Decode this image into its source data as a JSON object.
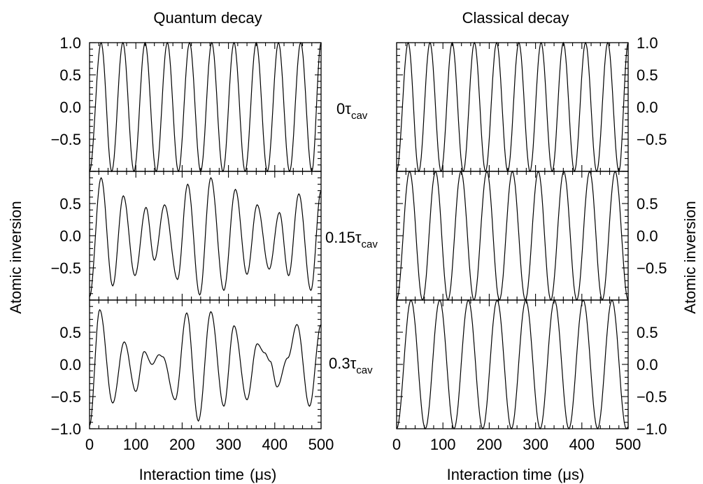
{
  "chart_data": [
    {
      "type": "line",
      "title": "Quantum decay",
      "xlabel": "Interaction time",
      "xunit": "(μs)",
      "ylabel": "Atomic inversion",
      "xlim": [
        0,
        500
      ],
      "xticks": [
        "0",
        "100",
        "200",
        "300",
        "400",
        "500"
      ],
      "rows": [
        {
          "label_main": "0τ",
          "label_sub": "cav",
          "ylim": [
            -1.0,
            1.0
          ],
          "yticks": [
            "1.0",
            "0.5",
            "0.0",
            "−0.5"
          ],
          "peaks": [
            [
              0,
              -1.0
            ],
            [
              25,
              1.0
            ],
            [
              48,
              -1.0
            ],
            [
              72,
              1.0
            ],
            [
              96,
              -1.0
            ],
            [
              120,
              1.0
            ],
            [
              144,
              -1.0
            ],
            [
              168,
              1.0
            ],
            [
              192,
              -1.0
            ],
            [
              216,
              1.0
            ],
            [
              240,
              -1.0
            ],
            [
              264,
              1.0
            ],
            [
              288,
              -1.0
            ],
            [
              312,
              1.0
            ],
            [
              336,
              -1.0
            ],
            [
              360,
              1.0
            ],
            [
              384,
              -1.0
            ],
            [
              408,
              1.0
            ],
            [
              432,
              -1.0
            ],
            [
              456,
              1.0
            ],
            [
              480,
              -1.0
            ],
            [
              500,
              1.0
            ]
          ]
        },
        {
          "label_main": "0.15τ",
          "label_sub": "cav",
          "ylim": [
            -1.0,
            1.0
          ],
          "yticks": [
            "0.5",
            "0.0",
            "−0.5"
          ],
          "peaks": [
            [
              0,
              -0.95
            ],
            [
              25,
              0.9
            ],
            [
              50,
              -0.78
            ],
            [
              73,
              0.62
            ],
            [
              98,
              -0.62
            ],
            [
              122,
              0.44
            ],
            [
              140,
              -0.38
            ],
            [
              162,
              0.48
            ],
            [
              190,
              -0.68
            ],
            [
              212,
              0.8
            ],
            [
              238,
              -0.92
            ],
            [
              262,
              0.9
            ],
            [
              290,
              -0.85
            ],
            [
              315,
              0.72
            ],
            [
              340,
              -0.6
            ],
            [
              362,
              0.48
            ],
            [
              388,
              -0.52
            ],
            [
              410,
              0.36
            ],
            [
              430,
              -0.62
            ],
            [
              452,
              0.65
            ],
            [
              478,
              -0.85
            ],
            [
              500,
              0.7
            ]
          ]
        },
        {
          "label_main": "0.3τ",
          "label_sub": "cav",
          "ylim": [
            -1.0,
            1.0
          ],
          "yticks": [
            "0.5",
            "0.0",
            "−0.5",
            "−1.0"
          ],
          "peaks": [
            [
              0,
              -0.95
            ],
            [
              22,
              0.85
            ],
            [
              50,
              -0.6
            ],
            [
              75,
              0.35
            ],
            [
              100,
              -0.42
            ],
            [
              118,
              0.2
            ],
            [
              135,
              0.0
            ],
            [
              150,
              0.15
            ],
            [
              158,
              0.12
            ],
            [
              185,
              -0.55
            ],
            [
              210,
              0.8
            ],
            [
              235,
              -0.88
            ],
            [
              262,
              0.82
            ],
            [
              290,
              -0.65
            ],
            [
              312,
              0.6
            ],
            [
              340,
              -0.55
            ],
            [
              362,
              0.32
            ],
            [
              378,
              0.18
            ],
            [
              390,
              0.05
            ],
            [
              405,
              -0.35
            ],
            [
              428,
              0.1
            ],
            [
              448,
              0.62
            ],
            [
              475,
              -0.65
            ],
            [
              500,
              0.62
            ]
          ]
        }
      ]
    },
    {
      "type": "line",
      "title": "Classical decay",
      "xlabel": "Interaction time",
      "xunit": "(μs)",
      "ylabel": "Atomic inversion",
      "xlim": [
        0,
        500
      ],
      "xticks": [
        "0",
        "100",
        "200",
        "300",
        "400",
        "500"
      ],
      "rows": [
        {
          "ylim": [
            -1.0,
            1.0
          ],
          "yticks": [
            "1.0",
            "0.5",
            "0.0",
            "−0.5"
          ],
          "peaks": [
            [
              0,
              -1.0
            ],
            [
              25,
              1.0
            ],
            [
              48,
              -1.0
            ],
            [
              72,
              1.0
            ],
            [
              96,
              -1.0
            ],
            [
              120,
              1.0
            ],
            [
              144,
              -1.0
            ],
            [
              168,
              1.0
            ],
            [
              192,
              -1.0
            ],
            [
              216,
              1.0
            ],
            [
              240,
              -1.0
            ],
            [
              264,
              1.0
            ],
            [
              288,
              -1.0
            ],
            [
              312,
              1.0
            ],
            [
              336,
              -1.0
            ],
            [
              360,
              1.0
            ],
            [
              384,
              -1.0
            ],
            [
              408,
              1.0
            ],
            [
              432,
              -1.0
            ],
            [
              456,
              1.0
            ],
            [
              480,
              -1.0
            ],
            [
              500,
              1.0
            ]
          ]
        },
        {
          "ylim": [
            -1.0,
            1.0
          ],
          "yticks": [
            "0.5",
            "0.0",
            "−0.5"
          ],
          "peaks": [
            [
              0,
              -1.0
            ],
            [
              28,
              1.0
            ],
            [
              56,
              -1.0
            ],
            [
              84,
              1.0
            ],
            [
              111,
              -1.0
            ],
            [
              139,
              1.0
            ],
            [
              167,
              -1.0
            ],
            [
              195,
              1.0
            ],
            [
              222,
              -1.0
            ],
            [
              250,
              1.0
            ],
            [
              278,
              -1.0
            ],
            [
              306,
              1.0
            ],
            [
              333,
              -1.0
            ],
            [
              361,
              1.0
            ],
            [
              389,
              -1.0
            ],
            [
              417,
              1.0
            ],
            [
              444,
              -1.0
            ],
            [
              472,
              1.0
            ],
            [
              500,
              -1.0
            ]
          ]
        },
        {
          "ylim": [
            -1.0,
            1.0
          ],
          "yticks": [
            "0.5",
            "0.0",
            "−0.5",
            "−1.0"
          ],
          "peaks": [
            [
              0,
              -1.0
            ],
            [
              31,
              1.0
            ],
            [
              62,
              -1.0
            ],
            [
              93,
              1.0
            ],
            [
              124,
              -1.0
            ],
            [
              155,
              1.0
            ],
            [
              186,
              -1.0
            ],
            [
              217,
              1.0
            ],
            [
              248,
              -1.0
            ],
            [
              279,
              1.0
            ],
            [
              310,
              -1.0
            ],
            [
              341,
              1.0
            ],
            [
              372,
              -1.0
            ],
            [
              403,
              1.0
            ],
            [
              434,
              -1.0
            ],
            [
              465,
              1.0
            ],
            [
              496,
              -1.0
            ],
            [
              500,
              -0.97
            ]
          ]
        }
      ]
    }
  ]
}
